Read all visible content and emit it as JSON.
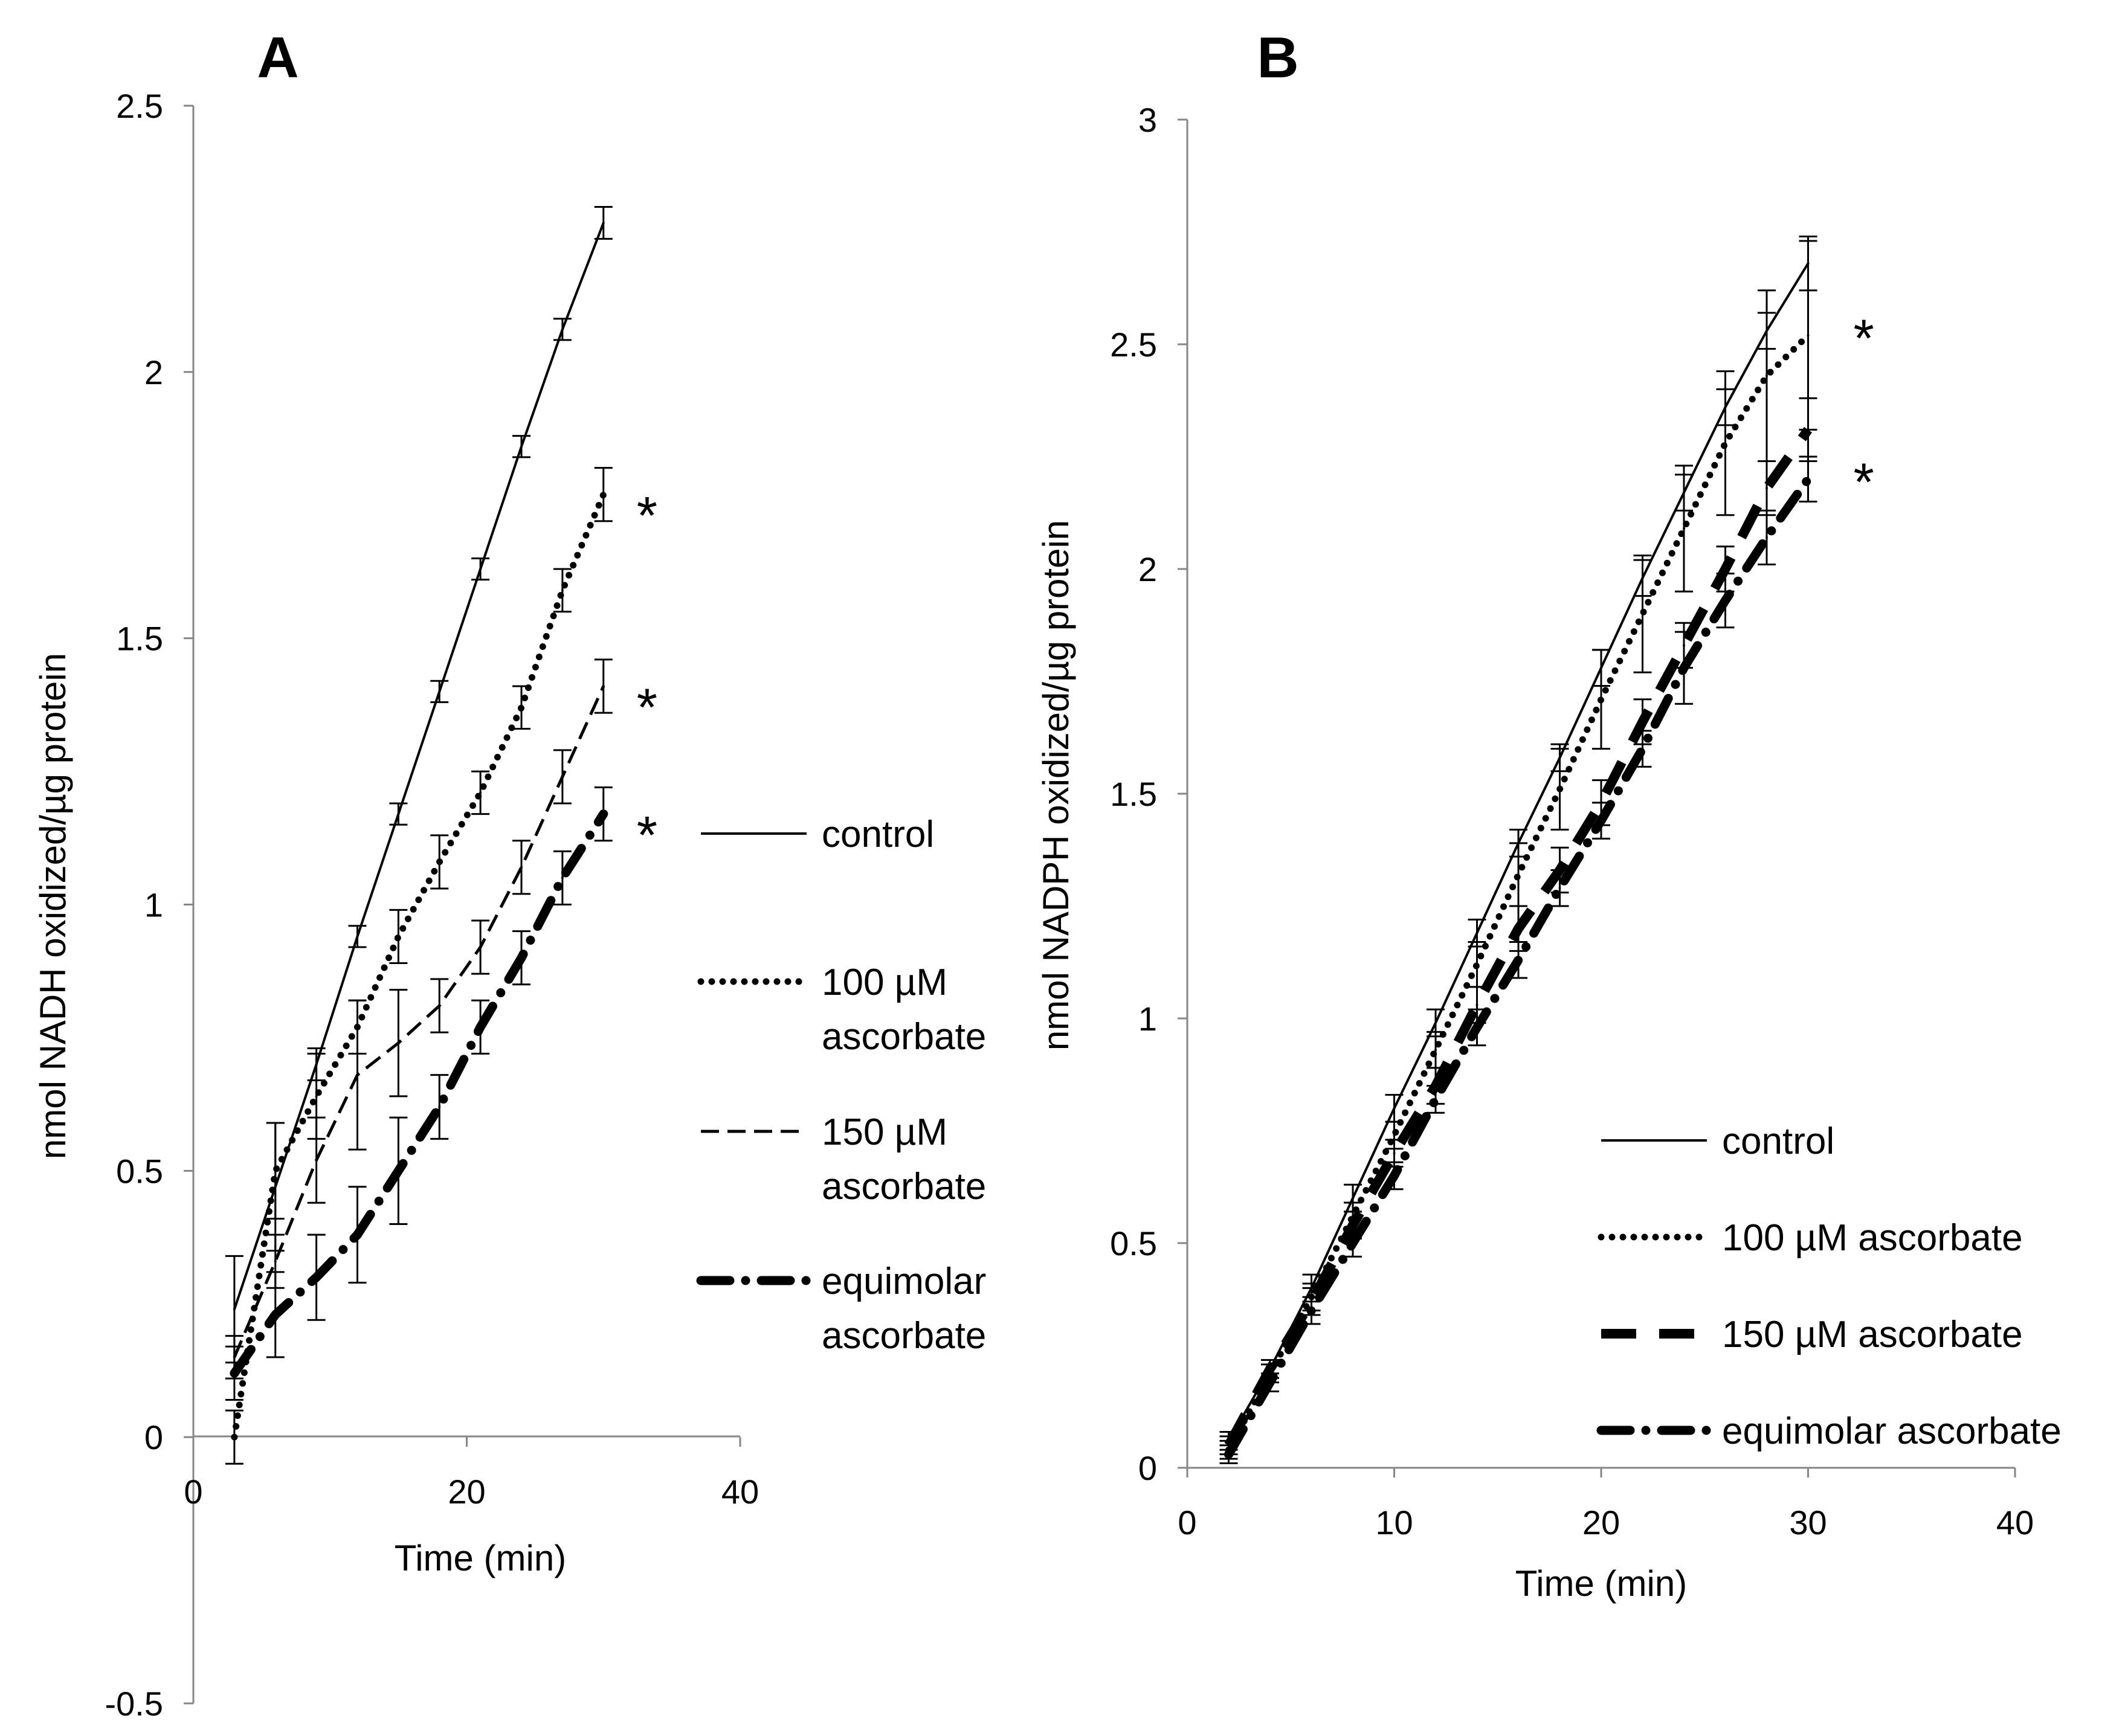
{
  "chart_data": [
    {
      "type": "line",
      "panel_label": "A",
      "xlabel": "Time (min)",
      "ylabel": "nmol NADH oxidized/µg protein",
      "xlim": [
        0,
        40
      ],
      "ylim": [
        -0.5,
        2.5
      ],
      "xticks": [
        "0",
        "20",
        "40"
      ],
      "yticks": [
        "-0.5",
        "0",
        "0.5",
        "1",
        "1.5",
        "2",
        "2.5"
      ],
      "legend_position": "right",
      "series": [
        {
          "name": "control",
          "style": "solid",
          "x": [
            3,
            6,
            9,
            12,
            15,
            18,
            21,
            24,
            27,
            30
          ],
          "y": [
            0.24,
            0.47,
            0.7,
            0.94,
            1.17,
            1.4,
            1.63,
            1.86,
            2.08,
            2.28
          ],
          "err": [
            0.1,
            0.12,
            0.03,
            0.02,
            0.02,
            0.02,
            0.02,
            0.02,
            0.02,
            0.03
          ]
        },
        {
          "name": "100 µM ascorbate",
          "style": "dotted",
          "x": [
            3,
            6,
            9,
            12,
            15,
            18,
            21,
            24,
            27,
            30
          ],
          "y": [
            0.0,
            0.5,
            0.64,
            0.77,
            0.94,
            1.08,
            1.21,
            1.37,
            1.59,
            1.77
          ],
          "err": [
            0.05,
            0.09,
            0.08,
            0.05,
            0.05,
            0.05,
            0.04,
            0.04,
            0.04,
            0.05
          ],
          "star": "*"
        },
        {
          "name": "150 µM ascorbate",
          "style": "dashed",
          "x": [
            3,
            6,
            9,
            12,
            15,
            18,
            21,
            24,
            27,
            30
          ],
          "y": [
            0.15,
            0.33,
            0.52,
            0.68,
            0.74,
            0.81,
            0.92,
            1.07,
            1.24,
            1.41
          ],
          "err": [
            0.04,
            0.05,
            0.08,
            0.14,
            0.1,
            0.05,
            0.05,
            0.05,
            0.05,
            0.05
          ],
          "star": "*"
        },
        {
          "name": "equimolar ascorbate",
          "style": "dashdot",
          "x": [
            3,
            6,
            9,
            12,
            15,
            18,
            21,
            24,
            27,
            30
          ],
          "y": [
            0.12,
            0.23,
            0.3,
            0.38,
            0.5,
            0.62,
            0.77,
            0.9,
            1.05,
            1.17
          ],
          "err": [
            0.05,
            0.08,
            0.08,
            0.09,
            0.1,
            0.06,
            0.05,
            0.05,
            0.05,
            0.05
          ],
          "star": "*"
        }
      ]
    },
    {
      "type": "line",
      "panel_label": "B",
      "xlabel": "Time (min)",
      "ylabel": "nmol NADPH oxidized/µg protein",
      "xlim": [
        0,
        40
      ],
      "ylim": [
        0,
        3
      ],
      "xticks": [
        "0",
        "10",
        "20",
        "30",
        "40"
      ],
      "yticks": [
        "0",
        "0.5",
        "1",
        "1.5",
        "2",
        "2.5",
        "3"
      ],
      "legend_position": "bottom-right",
      "series": [
        {
          "name": "control",
          "style": "solid",
          "x": [
            2,
            4,
            6,
            8,
            10,
            12,
            14,
            16,
            18,
            20,
            22,
            24,
            26,
            28,
            30
          ],
          "y": [
            0.06,
            0.22,
            0.4,
            0.6,
            0.8,
            0.99,
            1.19,
            1.39,
            1.58,
            1.78,
            1.98,
            2.17,
            2.36,
            2.53,
            2.68
          ],
          "err": [
            0.02,
            0.02,
            0.03,
            0.03,
            0.03,
            0.03,
            0.03,
            0.03,
            0.03,
            0.04,
            0.04,
            0.04,
            0.04,
            0.04,
            0.06
          ]
        },
        {
          "name": "100 µM ascorbate",
          "style": "dotted",
          "x": [
            2,
            4,
            6,
            8,
            10,
            12,
            14,
            16,
            18,
            20,
            22,
            24,
            26,
            28,
            30
          ],
          "y": [
            0.04,
            0.21,
            0.38,
            0.56,
            0.74,
            0.93,
            1.12,
            1.32,
            1.51,
            1.71,
            1.9,
            2.09,
            2.28,
            2.43,
            2.52
          ],
          "err": [
            0.02,
            0.02,
            0.03,
            0.03,
            0.03,
            0.04,
            0.05,
            0.07,
            0.09,
            0.11,
            0.13,
            0.14,
            0.16,
            0.19,
            0.21
          ],
          "star": "*"
        },
        {
          "name": "150 µM ascorbate",
          "style": "longdash",
          "x": [
            2,
            4,
            6,
            8,
            10,
            12,
            14,
            16,
            18,
            20,
            22,
            24,
            26,
            28,
            30
          ],
          "y": [
            0.05,
            0.22,
            0.37,
            0.54,
            0.7,
            0.85,
            1.03,
            1.2,
            1.33,
            1.48,
            1.66,
            1.83,
            2.0,
            2.18,
            2.31
          ],
          "err": [
            0.02,
            0.02,
            0.03,
            0.03,
            0.03,
            0.04,
            0.04,
            0.05,
            0.05,
            0.05,
            0.05,
            0.05,
            0.05,
            0.06,
            0.07
          ]
        },
        {
          "name": "equimolar ascorbate",
          "style": "dashdot",
          "x": [
            2,
            4,
            6,
            8,
            10,
            12,
            14,
            16,
            18,
            20,
            22,
            24,
            26,
            28,
            30
          ],
          "y": [
            0.03,
            0.19,
            0.35,
            0.5,
            0.65,
            0.82,
            0.98,
            1.13,
            1.29,
            1.44,
            1.6,
            1.78,
            1.93,
            2.07,
            2.2
          ],
          "err": [
            0.02,
            0.02,
            0.03,
            0.03,
            0.03,
            0.03,
            0.04,
            0.04,
            0.04,
            0.04,
            0.04,
            0.08,
            0.06,
            0.06,
            0.05
          ],
          "star": "*"
        }
      ]
    }
  ]
}
